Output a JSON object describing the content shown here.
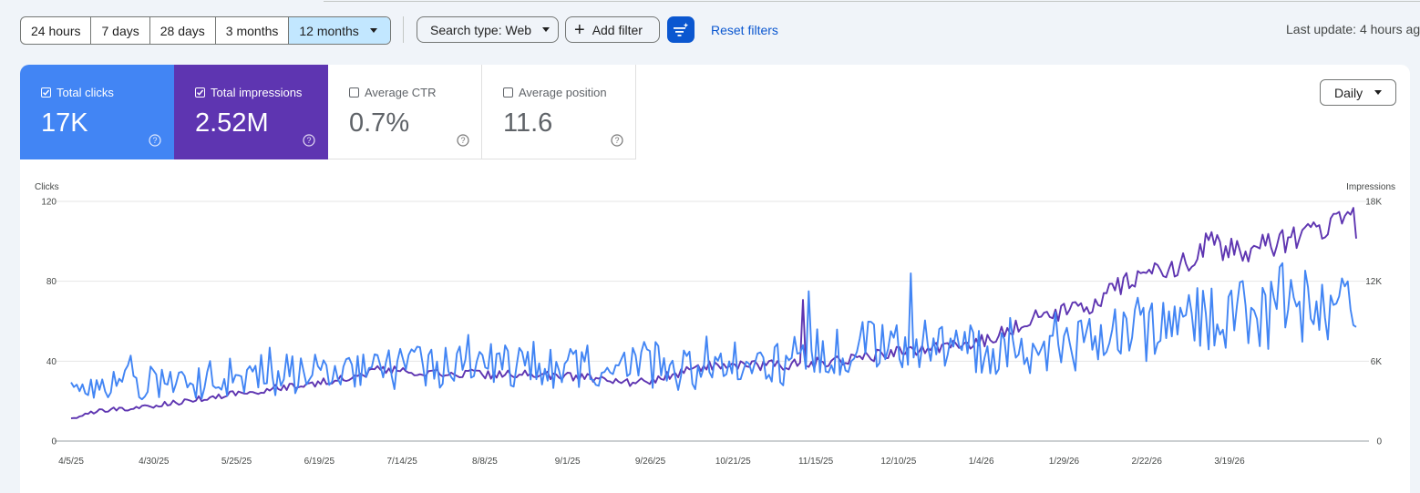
{
  "toolbar": {
    "ranges": [
      "24 hours",
      "7 days",
      "28 days",
      "3 months",
      "12 months"
    ],
    "selected_range": "12 months",
    "search_type": "Search type: Web",
    "add_filter": "Add filter",
    "reset_filters": "Reset filters",
    "last_update": "Last update: 4 hours ag"
  },
  "metrics": [
    {
      "label": "Total clicks",
      "value": "17K",
      "checked": true,
      "color": "#4285f4"
    },
    {
      "label": "Total impressions",
      "value": "2.52M",
      "checked": true,
      "color": "#5e35b1"
    },
    {
      "label": "Average CTR",
      "value": "0.7%",
      "checked": false
    },
    {
      "label": "Average position",
      "value": "11.6",
      "checked": false
    }
  ],
  "granularity": "Daily",
  "chart_data": {
    "type": "line",
    "left_axis_label": "Clicks",
    "right_axis_label": "Impressions",
    "left_ticks": [
      "0",
      "40",
      "80",
      "120"
    ],
    "right_ticks": [
      "0",
      "6K",
      "12K",
      "18K"
    ],
    "ylim_left": [
      0,
      120
    ],
    "ylim_right": [
      0,
      18000
    ],
    "x_tick_labels": [
      "4/5/25",
      "4/30/25",
      "5/25/25",
      "6/19/25",
      "7/14/25",
      "8/8/25",
      "9/1/25",
      "9/26/25",
      "10/21/25",
      "11/15/25",
      "12/10/25",
      "1/4/26",
      "1/29/26",
      "2/22/26",
      "3/19/26"
    ],
    "series": [
      {
        "name": "Total clicks",
        "axis": "left",
        "color": "#4285f4",
        "anchors": [
          [
            0,
            22
          ],
          [
            10,
            28
          ],
          [
            25,
            30
          ],
          [
            50,
            31
          ],
          [
            75,
            34
          ],
          [
            100,
            36
          ],
          [
            125,
            37
          ],
          [
            150,
            38
          ],
          [
            175,
            38
          ],
          [
            200,
            38
          ],
          [
            225,
            37
          ],
          [
            250,
            40
          ],
          [
            270,
            44
          ],
          [
            285,
            47
          ],
          [
            300,
            48
          ],
          [
            310,
            46
          ],
          [
            330,
            48
          ],
          [
            350,
            50
          ],
          [
            370,
            56
          ],
          [
            390,
            60
          ],
          [
            410,
            65
          ],
          [
            430,
            67
          ],
          [
            445,
            65
          ],
          [
            453,
            67
          ]
        ]
      },
      {
        "name": "Total impressions",
        "axis": "right",
        "color": "#5e35b1",
        "anchors": [
          [
            0,
            1700
          ],
          [
            10,
            2300
          ],
          [
            25,
            2500
          ],
          [
            40,
            3000
          ],
          [
            60,
            3600
          ],
          [
            90,
            4500
          ],
          [
            110,
            5400
          ],
          [
            130,
            5200
          ],
          [
            150,
            5000
          ],
          [
            175,
            4900
          ],
          [
            190,
            4500
          ],
          [
            200,
            4400
          ],
          [
            215,
            5100
          ],
          [
            225,
            5600
          ],
          [
            240,
            5700
          ],
          [
            260,
            5800
          ],
          [
            275,
            6100
          ],
          [
            285,
            6500
          ],
          [
            300,
            6900
          ],
          [
            310,
            7100
          ],
          [
            325,
            7700
          ],
          [
            335,
            8900
          ],
          [
            345,
            9500
          ],
          [
            360,
            10000
          ],
          [
            370,
            11800
          ],
          [
            380,
            12500
          ],
          [
            395,
            13500
          ],
          [
            400,
            15000
          ],
          [
            410,
            14200
          ],
          [
            420,
            14500
          ],
          [
            430,
            15000
          ],
          [
            442,
            15800
          ],
          [
            447,
            17200
          ],
          [
            453,
            16300
          ]
        ]
      }
    ]
  }
}
